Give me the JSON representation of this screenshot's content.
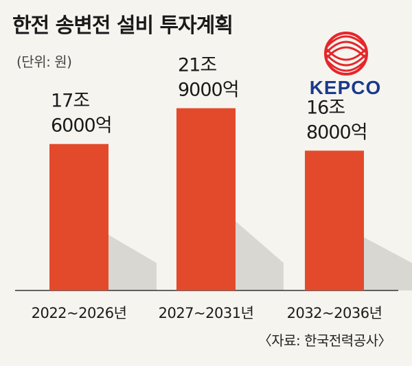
{
  "header": {
    "title": "한전 송변전 설비 투자계획",
    "unit": "(단위: 원)"
  },
  "logo": {
    "text": "KEPCO",
    "icon": "kepco-logo-icon"
  },
  "source": "〈자료: 한국전력공사〉",
  "colors": {
    "bar": "#e34a2c",
    "background": "#f5f4ef",
    "logo_red": "#e5262b",
    "logo_blue": "#1b3a8c"
  },
  "chart_data": {
    "type": "bar",
    "categories": [
      "2022~2026년",
      "2027~2031년",
      "2032~2036년"
    ],
    "values": [
      17.6,
      21.9,
      16.8
    ],
    "value_unit": "조 원",
    "data_labels": [
      [
        "17조",
        "6000억"
      ],
      [
        "21조",
        "9000억"
      ],
      [
        "16조",
        "8000억"
      ]
    ],
    "ylim": [
      0,
      25
    ],
    "title": "한전 송변전 설비 투자계획",
    "xlabel": "",
    "ylabel": "",
    "grid": false,
    "legend": "none"
  }
}
